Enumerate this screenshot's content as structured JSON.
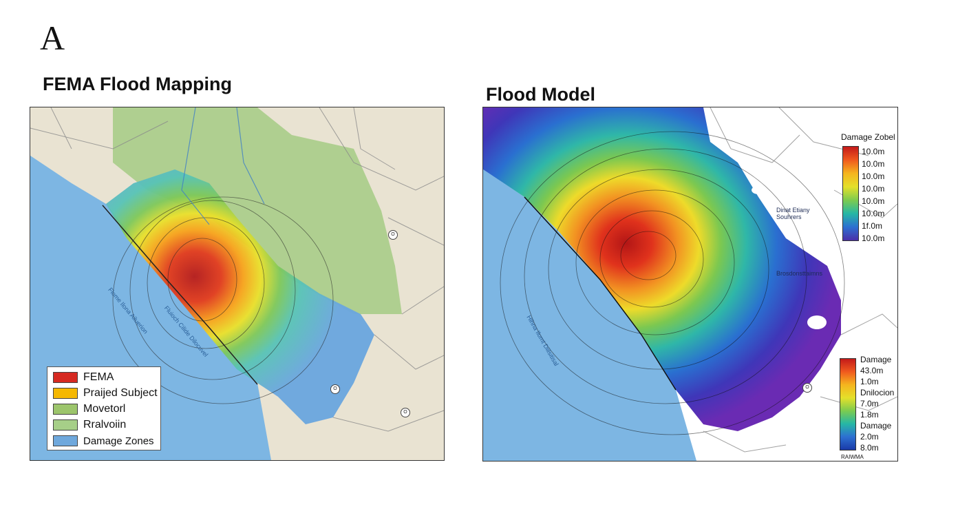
{
  "figure": {
    "panel_letter": "A"
  },
  "left_map": {
    "title": "FEMA Flood Mapping",
    "legend": [
      {
        "label": "FEMA",
        "color": "#d62a22"
      },
      {
        "label": "Praijed Subject",
        "color": "#f5b800"
      },
      {
        "label": "Movetorl",
        "color": "#9cc56c"
      },
      {
        "label": "Rralvoiin",
        "color": "#a6cf88"
      },
      {
        "label": "Damage Zones",
        "color": "#6fa8dc"
      }
    ],
    "water_labels": [
      "Flome Ilona Ailuerion",
      "Fluioch Cilide Dilocuvel"
    ],
    "route_markers": [
      "O",
      "O",
      "O"
    ]
  },
  "right_map": {
    "title": "Flood Model",
    "colorbar_top": {
      "title": "Damage Zobel",
      "ticks": [
        "10.0m",
        "10.0m",
        "10.0m",
        "10.0m",
        "10.0m",
        "10.0m",
        "1f.0m",
        "10.0m"
      ]
    },
    "colorbar_bottom": {
      "ticks": [
        "Damage",
        "43.0m",
        "1.0m",
        "Dnilocion",
        "7.0m",
        "1.8m",
        "Damage",
        "2.0m",
        "8.0m"
      ],
      "footer": "RAIWMA"
    },
    "map_labels": [
      "Dinat Etiany Souhrers",
      "Brosdonsttaimns",
      "Hlhna Ilumt Diilsitisal"
    ],
    "route_markers": [
      "O"
    ]
  },
  "colors": {
    "water": "#7db6e3",
    "land": "#e9e3d2",
    "green_terrain": "#a9cc88",
    "road": "#8a8a8a"
  }
}
